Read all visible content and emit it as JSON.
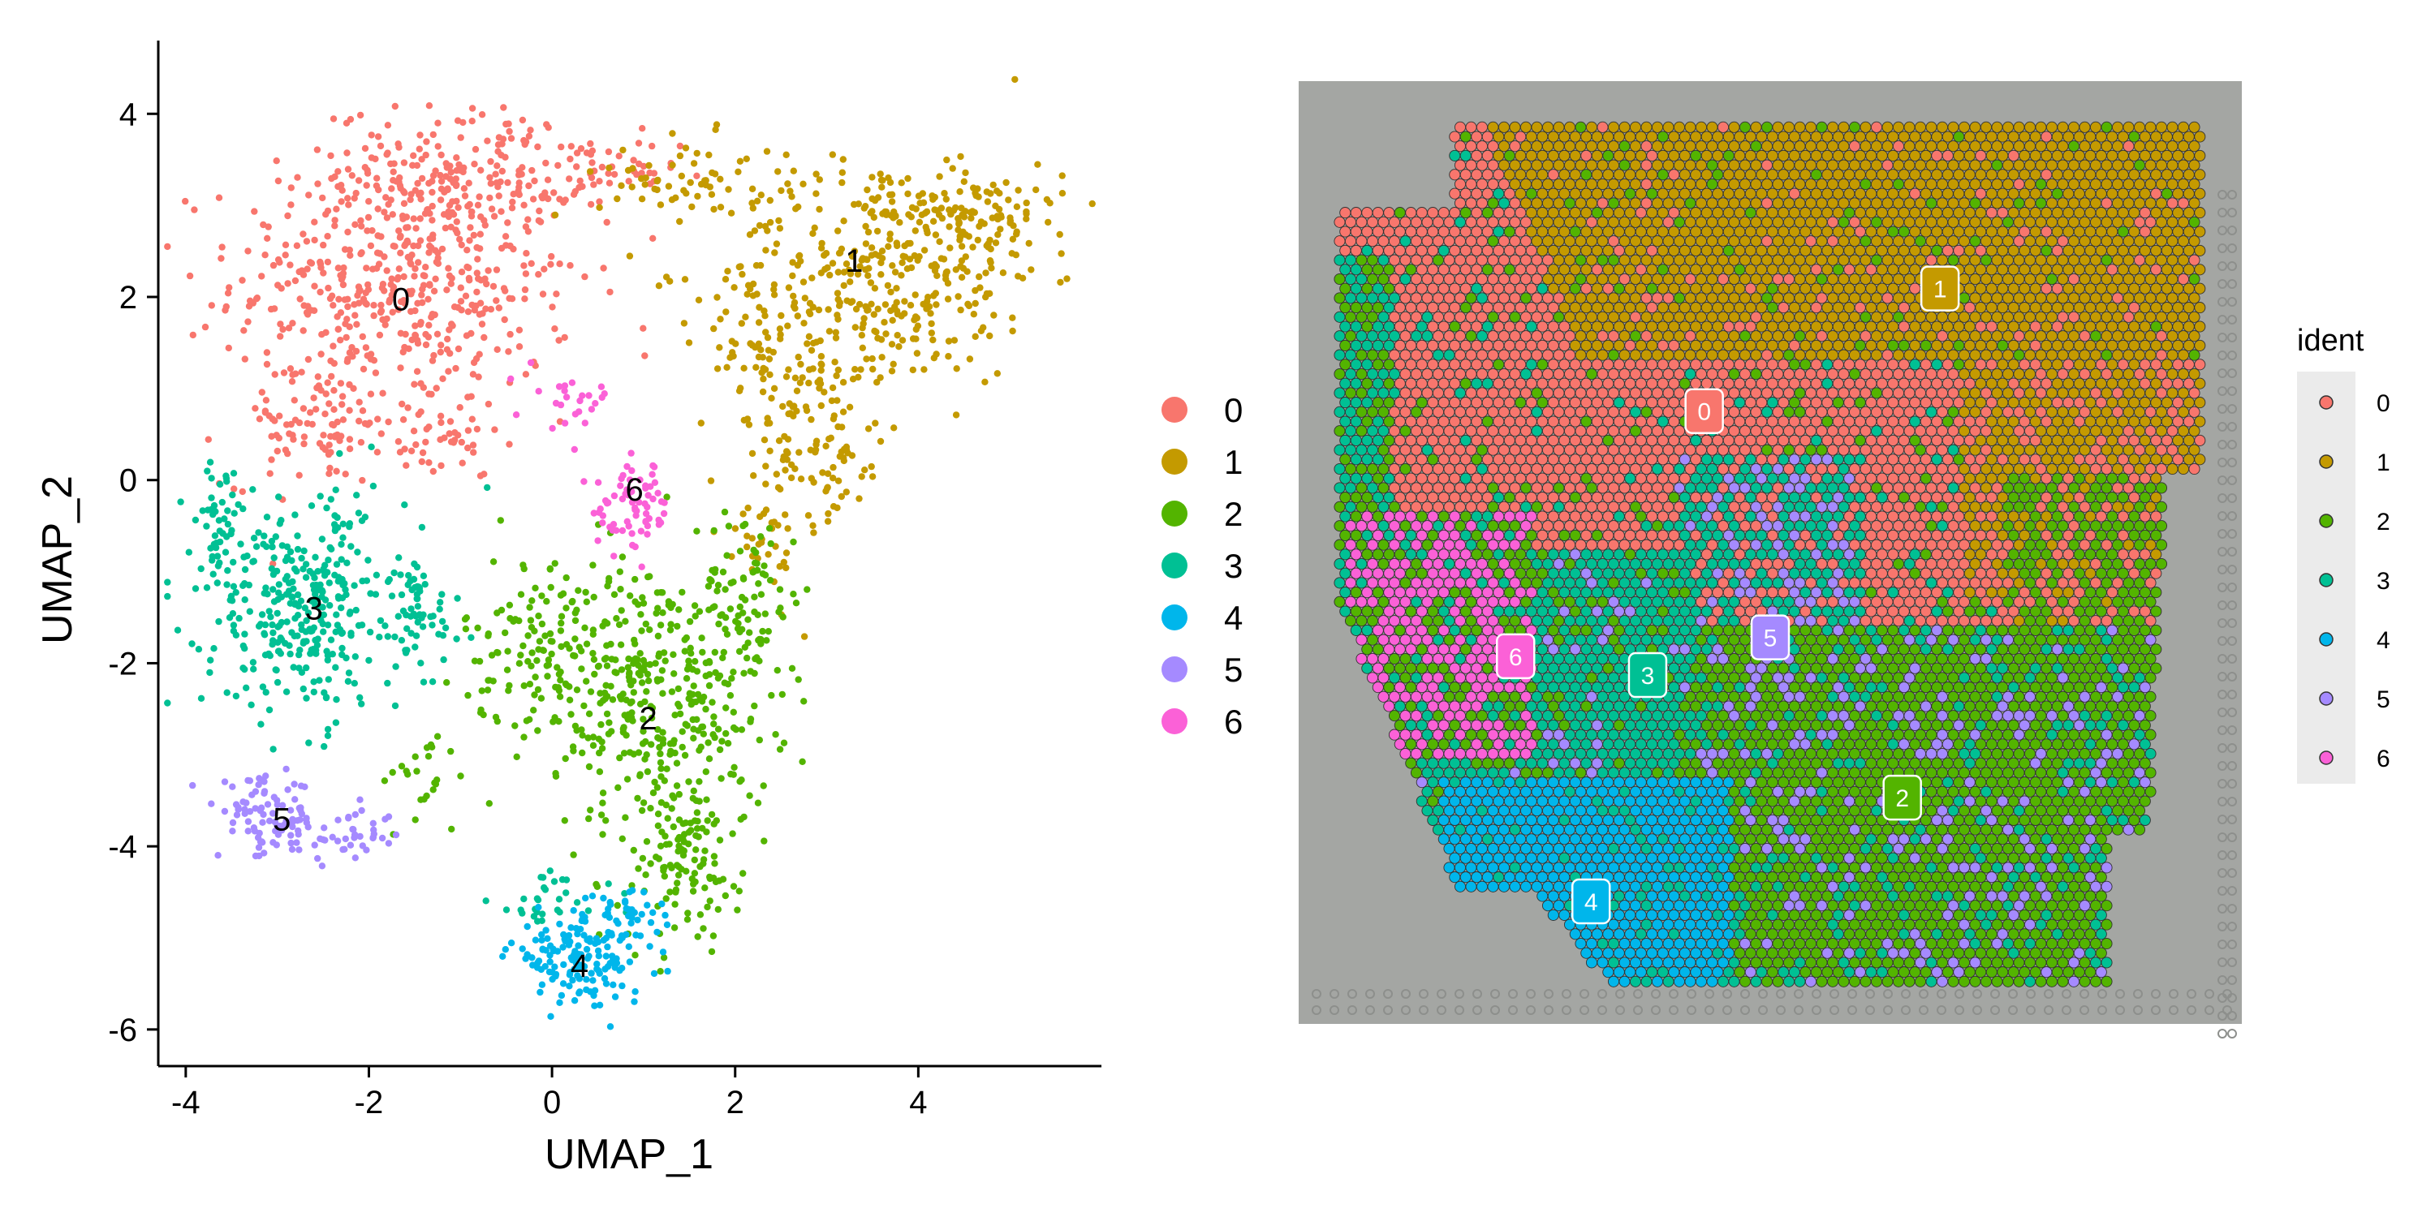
{
  "chart_data": [
    {
      "type": "scatter",
      "xlabel": "UMAP_1",
      "ylabel": "UMAP_2",
      "xlim": [
        -4.3,
        6.0
      ],
      "ylim": [
        -6.4,
        4.8
      ],
      "x_ticks": [
        -4,
        -2,
        0,
        2,
        4
      ],
      "y_ticks": [
        -6,
        -4,
        -2,
        0,
        2,
        4
      ],
      "grid": false,
      "legend_position": "right",
      "series": [
        {
          "name": "0",
          "color": "#F8766D",
          "label_pos": [
            -1.65,
            1.98
          ],
          "regions": [
            [
              -1.6,
              2.2,
              1.7,
              1.35,
              520
            ],
            [
              -1.0,
              3.4,
              1.2,
              0.6,
              140
            ],
            [
              0.5,
              3.3,
              0.8,
              0.4,
              45
            ],
            [
              -2.6,
              0.6,
              0.9,
              0.6,
              90
            ],
            [
              -1.2,
              0.4,
              0.6,
              0.4,
              40
            ]
          ]
        },
        {
          "name": "1",
          "color": "#C49A00",
          "label_pos": [
            3.3,
            2.4
          ],
          "regions": [
            [
              3.6,
              2.3,
              1.6,
              1.1,
              330
            ],
            [
              4.6,
              2.9,
              0.9,
              0.5,
              110
            ],
            [
              2.6,
              1.2,
              0.9,
              0.9,
              120
            ],
            [
              3.0,
              0.2,
              0.6,
              0.6,
              60
            ],
            [
              2.3,
              -0.6,
              0.4,
              0.7,
              35
            ],
            [
              1.5,
              3.3,
              0.9,
              0.4,
              60
            ]
          ]
        },
        {
          "name": "2",
          "color": "#53B400",
          "label_pos": [
            1.05,
            -2.6
          ],
          "regions": [
            [
              1.2,
              -2.4,
              1.1,
              1.4,
              360
            ],
            [
              0.0,
              -1.8,
              0.9,
              0.9,
              140
            ],
            [
              1.4,
              -4.2,
              0.6,
              0.8,
              110
            ],
            [
              2.2,
              -1.2,
              0.5,
              0.8,
              70
            ],
            [
              -1.4,
              -3.3,
              0.5,
              0.5,
              25
            ]
          ]
        },
        {
          "name": "3",
          "color": "#00C094",
          "label_pos": [
            -2.6,
            -1.4
          ],
          "regions": [
            [
              -2.7,
              -1.4,
              1.0,
              1.1,
              330
            ],
            [
              -3.6,
              -0.5,
              0.3,
              0.6,
              50
            ],
            [
              -1.5,
              -1.5,
              0.5,
              0.7,
              50
            ],
            [
              0.0,
              -4.6,
              0.6,
              0.3,
              30
            ]
          ]
        },
        {
          "name": "4",
          "color": "#00B6EB",
          "label_pos": [
            0.3,
            -5.3
          ],
          "regions": [
            [
              0.3,
              -5.2,
              0.7,
              0.45,
              150
            ],
            [
              0.9,
              -4.8,
              0.4,
              0.3,
              30
            ]
          ]
        },
        {
          "name": "5",
          "color": "#A58AFF",
          "label_pos": [
            -2.95,
            -3.7
          ],
          "regions": [
            [
              -3.1,
              -3.7,
              0.5,
              0.4,
              90
            ],
            [
              -2.2,
              -3.9,
              0.5,
              0.25,
              40
            ]
          ]
        },
        {
          "name": "6",
          "color": "#FB61D7",
          "label_pos": [
            0.9,
            -0.1
          ],
          "regions": [
            [
              0.9,
              -0.3,
              0.4,
              0.45,
              70
            ],
            [
              0.2,
              0.9,
              0.4,
              0.3,
              25
            ]
          ]
        }
      ],
      "legend": [
        "0",
        "1",
        "2",
        "3",
        "4",
        "5",
        "6"
      ]
    },
    {
      "type": "heatmap",
      "subtype": "spatial-spot-map",
      "legend_title": "ident",
      "legend": [
        "0",
        "1",
        "2",
        "3",
        "4",
        "5",
        "6"
      ],
      "colors": {
        "0": "#F8766D",
        "1": "#C49A00",
        "2": "#53B400",
        "3": "#00C094",
        "4": "#00B6EB",
        "5": "#A58AFF",
        "6": "#FB61D7"
      },
      "background_color": "#A4A6A3",
      "cluster_labels": [
        {
          "name": "0",
          "pos": [
            0.43,
            0.35
          ]
        },
        {
          "name": "1",
          "pos": [
            0.68,
            0.22
          ]
        },
        {
          "name": "2",
          "pos": [
            0.64,
            0.76
          ]
        },
        {
          "name": "3",
          "pos": [
            0.37,
            0.63
          ]
        },
        {
          "name": "4",
          "pos": [
            0.31,
            0.87
          ]
        },
        {
          "name": "5",
          "pos": [
            0.5,
            0.59
          ]
        },
        {
          "name": "6",
          "pos": [
            0.23,
            0.61
          ]
        }
      ]
    }
  ]
}
